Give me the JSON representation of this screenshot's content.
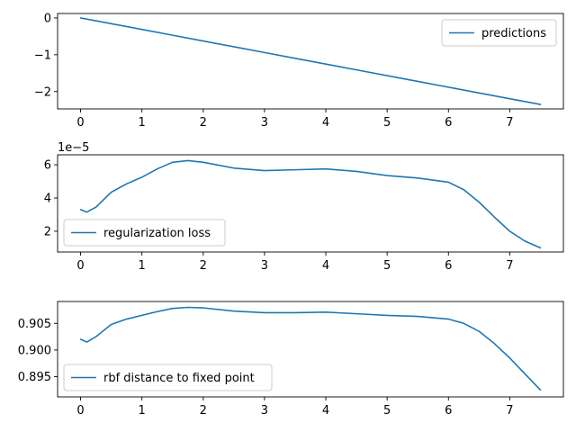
{
  "chart_data": [
    {
      "type": "line",
      "x": [
        0,
        0.5,
        1,
        1.5,
        2,
        2.5,
        3,
        3.5,
        4,
        4.5,
        5,
        5.5,
        6,
        6.5,
        7,
        7.5
      ],
      "series": [
        {
          "name": "predictions",
          "color": "#1f77b4",
          "values": [
            0.0,
            -0.157,
            -0.313,
            -0.47,
            -0.627,
            -0.783,
            -0.94,
            -1.097,
            -1.253,
            -1.41,
            -1.567,
            -1.723,
            -1.88,
            -2.037,
            -2.193,
            -2.35
          ]
        }
      ],
      "xlim": [
        -0.375,
        7.875
      ],
      "ylim": [
        -2.47,
        0.12
      ],
      "xticks": [
        "0",
        "1",
        "2",
        "3",
        "4",
        "5",
        "6",
        "7"
      ],
      "xtick_values": [
        0,
        1,
        2,
        3,
        4,
        5,
        6,
        7
      ],
      "yticks": [
        "0",
        "−1",
        "−2"
      ],
      "ytick_values": [
        0,
        -1,
        -2
      ],
      "legend": "top-right",
      "grid": false
    },
    {
      "type": "line",
      "x": [
        0,
        0.1,
        0.25,
        0.5,
        0.75,
        1,
        1.25,
        1.5,
        1.75,
        2,
        2.5,
        3,
        3.5,
        4,
        4.5,
        5,
        5.5,
        6,
        6.25,
        6.5,
        6.75,
        7,
        7.25,
        7.5
      ],
      "series": [
        {
          "name": "regularization loss",
          "color": "#1f77b4",
          "values": [
            3.3,
            3.15,
            3.45,
            4.35,
            4.85,
            5.25,
            5.75,
            6.15,
            6.25,
            6.15,
            5.8,
            5.65,
            5.7,
            5.75,
            5.6,
            5.35,
            5.2,
            4.95,
            4.5,
            3.75,
            2.85,
            2.0,
            1.4,
            1.0
          ]
        }
      ],
      "xlim": [
        -0.375,
        7.875
      ],
      "ylim": [
        0.75,
        6.6
      ],
      "xticks": [
        "0",
        "1",
        "2",
        "3",
        "4",
        "5",
        "6",
        "7"
      ],
      "xtick_values": [
        0,
        1,
        2,
        3,
        4,
        5,
        6,
        7
      ],
      "yticks": [
        "2",
        "4",
        "6"
      ],
      "ytick_values": [
        2,
        4,
        6
      ],
      "offset_text": "1e−5",
      "legend": "bottom-left",
      "grid": false
    },
    {
      "type": "line",
      "x": [
        0,
        0.1,
        0.25,
        0.5,
        0.75,
        1,
        1.25,
        1.5,
        1.75,
        2,
        2.5,
        3,
        3.5,
        4,
        4.5,
        5,
        5.5,
        6,
        6.25,
        6.5,
        6.75,
        7,
        7.25,
        7.5
      ],
      "series": [
        {
          "name": "rbf distance to fixed point",
          "color": "#1f77b4",
          "values": [
            0.902,
            0.9015,
            0.9025,
            0.9048,
            0.9058,
            0.9065,
            0.9072,
            0.9078,
            0.908,
            0.9079,
            0.9073,
            0.907,
            0.907,
            0.9071,
            0.9068,
            0.9065,
            0.9063,
            0.9058,
            0.905,
            0.9035,
            0.9012,
            0.8985,
            0.8955,
            0.8925
          ]
        }
      ],
      "xlim": [
        -0.375,
        7.875
      ],
      "ylim": [
        0.8912,
        0.9091
      ],
      "xticks": [
        "0",
        "1",
        "2",
        "3",
        "4",
        "5",
        "6",
        "7"
      ],
      "xtick_values": [
        0,
        1,
        2,
        3,
        4,
        5,
        6,
        7
      ],
      "yticks": [
        "0.895",
        "0.900",
        "0.905"
      ],
      "ytick_values": [
        0.895,
        0.9,
        0.905
      ],
      "legend": "bottom-left",
      "grid": false
    }
  ]
}
